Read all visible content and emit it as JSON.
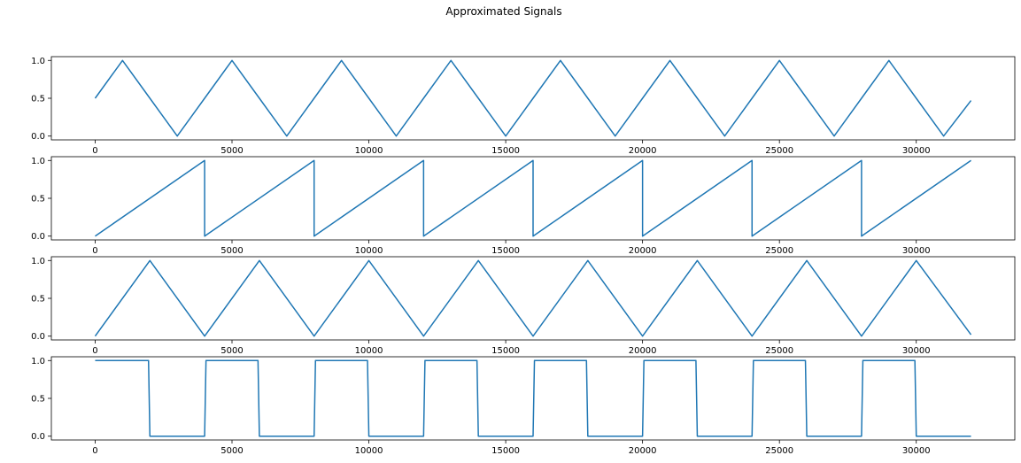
{
  "chart_data": {
    "title": "Approximated Signals",
    "type": "line",
    "layout": "4 stacked subplots",
    "series_color": "#1f77b4",
    "grid": false,
    "xticks": [
      0,
      5000,
      10000,
      15000,
      20000,
      25000,
      30000
    ],
    "xlim": [
      -1600,
      33600
    ],
    "yticks": [
      0.0,
      0.5,
      1.0
    ],
    "subplots": [
      {
        "waveform": "sine",
        "period": 4000,
        "x_range": [
          0,
          32000
        ],
        "ylim": [
          -0.05,
          1.05
        ],
        "x": [
          0,
          1000,
          2000,
          3000,
          4000,
          5000,
          6000,
          7000,
          8000,
          9000,
          10000,
          11000,
          12000,
          13000,
          14000,
          15000,
          16000,
          17000,
          18000,
          19000,
          20000,
          21000,
          22000,
          23000,
          24000,
          25000,
          26000,
          27000,
          28000,
          29000,
          30000,
          31000,
          32000
        ],
        "y": [
          0.5,
          1.0,
          0.5,
          0.0,
          0.5,
          1.0,
          0.5,
          0.0,
          0.5,
          1.0,
          0.5,
          0.0,
          0.5,
          1.0,
          0.5,
          0.0,
          0.5,
          1.0,
          0.5,
          0.0,
          0.5,
          1.0,
          0.5,
          0.0,
          0.5,
          1.0,
          0.5,
          0.0,
          0.5,
          1.0,
          0.5,
          0.0,
          0.47
        ]
      },
      {
        "waveform": "sawtooth",
        "period": 4000,
        "x_range": [
          0,
          32000
        ],
        "ylim": [
          -0.05,
          1.05
        ],
        "x": [
          0,
          4000,
          4000,
          8000,
          8000,
          12000,
          12000,
          16000,
          16000,
          20000,
          20000,
          24000,
          24000,
          28000,
          28000,
          32000
        ],
        "y": [
          0.0,
          1.0,
          0.0,
          1.0,
          0.0,
          1.0,
          0.0,
          1.0,
          0.0,
          1.0,
          0.0,
          1.0,
          0.0,
          1.0,
          0.0,
          1.0
        ]
      },
      {
        "waveform": "triangle",
        "period": 4000,
        "x_range": [
          0,
          32000
        ],
        "ylim": [
          -0.05,
          1.05
        ],
        "x": [
          0,
          2000,
          4000,
          6000,
          8000,
          10000,
          12000,
          14000,
          16000,
          18000,
          20000,
          22000,
          24000,
          26000,
          28000,
          30000,
          32000
        ],
        "y": [
          0.0,
          1.0,
          0.0,
          1.0,
          0.0,
          1.0,
          0.0,
          1.0,
          0.0,
          1.0,
          0.0,
          1.0,
          0.0,
          1.0,
          0.0,
          1.0,
          0.02
        ]
      },
      {
        "waveform": "square",
        "period": 4000,
        "x_range": [
          0,
          32000
        ],
        "ylim": [
          -0.05,
          1.05
        ],
        "x": [
          0,
          1950,
          2000,
          4000,
          4050,
          5950,
          6000,
          8000,
          8050,
          9950,
          10000,
          12000,
          12050,
          13950,
          14000,
          16000,
          16050,
          17950,
          18000,
          20000,
          20050,
          21950,
          22000,
          24000,
          24050,
          25950,
          26000,
          28000,
          28050,
          29950,
          30000,
          32000
        ],
        "y": [
          1.0,
          1.0,
          0.0,
          0.0,
          1.0,
          1.0,
          0.0,
          0.0,
          1.0,
          1.0,
          0.0,
          0.0,
          1.0,
          1.0,
          0.0,
          0.0,
          1.0,
          1.0,
          0.0,
          0.0,
          1.0,
          1.0,
          0.0,
          0.0,
          1.0,
          1.0,
          0.0,
          0.0,
          1.0,
          1.0,
          0.0,
          0.0
        ]
      }
    ]
  }
}
